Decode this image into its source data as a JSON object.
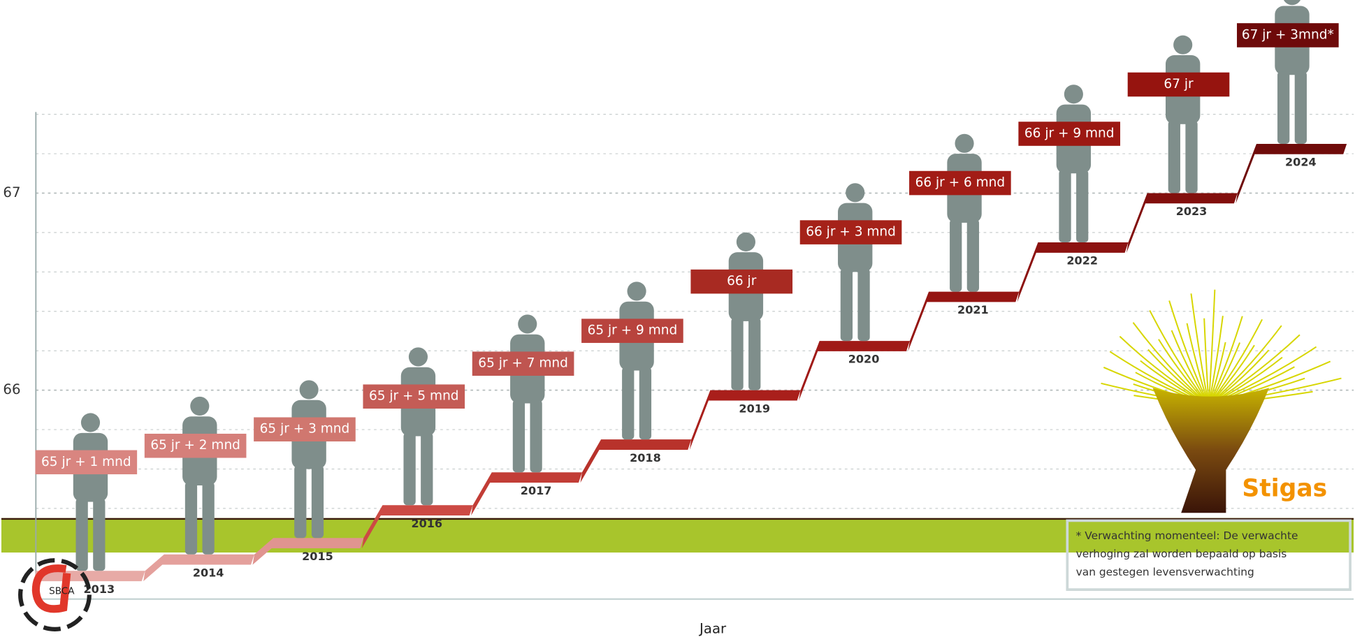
{
  "chart_data": {
    "type": "step",
    "x_label": "Jaar",
    "categories": [
      "2013",
      "2014",
      "2015",
      "2016",
      "2017",
      "2018",
      "2019",
      "2020",
      "2021",
      "2022",
      "2023",
      "2024"
    ],
    "values": [
      65.0833,
      65.1667,
      65.25,
      65.4167,
      65.5833,
      65.75,
      66,
      66.25,
      66.5,
      66.75,
      67,
      67.25
    ],
    "value_labels": [
      "65 jr + 1 mnd",
      "65 jr + 2 mnd",
      "65 jr + 3 mnd",
      "65 jr + 5 mnd",
      "65 jr + 7 mnd",
      "65 jr + 9 mnd",
      "66 jr",
      "66 jr + 3 mnd",
      "66 jr + 6 mnd",
      "66 jr + 9 mnd",
      "67 jr",
      "67 jr + 3mnd*"
    ],
    "colors": [
      "#e7aaa6",
      "#e4a09c",
      "#e09490",
      "#cc4a44",
      "#c23d36",
      "#b8322b",
      "#a91f1b",
      "#a01a17",
      "#951512",
      "#8c1210",
      "#820f0d",
      "#6f0b0a"
    ],
    "label_colors": [
      "#d98580",
      "#d57f7a",
      "#d0776f",
      "#c45c56",
      "#bf5550",
      "#b8433d",
      "#a82a22",
      "#a52219",
      "#a21c16",
      "#9c1812",
      "#96140f",
      "#6e0a0a"
    ],
    "ylim": [
      64.94,
      67.98
    ],
    "yticks": [
      66,
      67
    ],
    "grid": true,
    "minor_grid": true,
    "note": [
      "* Verwachting momenteel: De verwachte",
      "verhoging zal worden bepaald op basis",
      "van gestegen levensverwachting"
    ],
    "brand": "Stigas",
    "certification": "SBCA"
  }
}
